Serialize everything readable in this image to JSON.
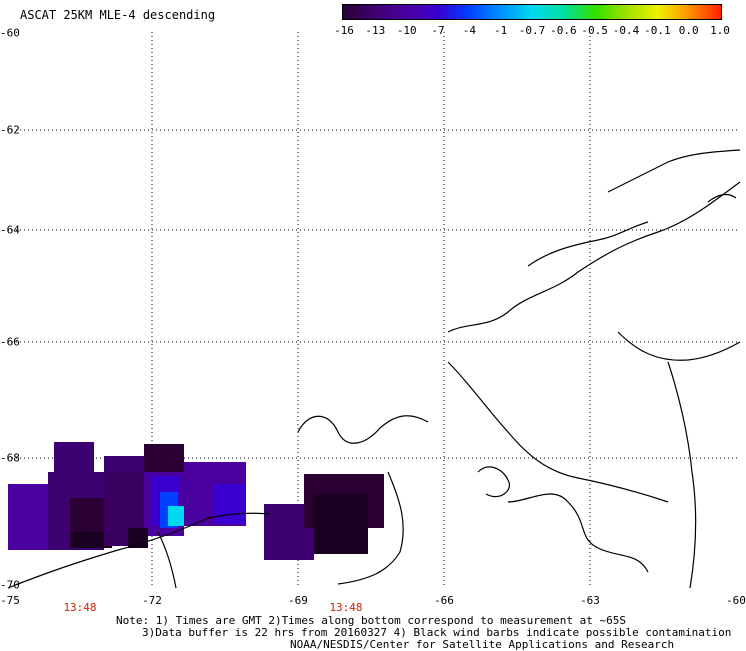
{
  "title": "ASCAT 25KM MLE-4 descending",
  "colorbar": {
    "labels": [
      "-16",
      "-13",
      "-10",
      "-7",
      "-4",
      "-1",
      "-0.7",
      "-0.6",
      "-0.5",
      "-0.4",
      "-0.1",
      "0.0",
      "1.0"
    ],
    "colors": [
      "#2a0033",
      "#3d0070",
      "#4b00a0",
      "#3a00d0",
      "#0040ff",
      "#0090ff",
      "#00d8f0",
      "#00e0a0",
      "#30e000",
      "#a0e000",
      "#f0f000",
      "#ff9000",
      "#ff2000"
    ]
  },
  "axes": {
    "x_ticks": [
      "-75",
      "-72",
      "-69",
      "-66",
      "-63",
      "-60"
    ],
    "y_ticks": [
      "-60",
      "-62",
      "-64",
      "-66",
      "-68",
      "-70"
    ]
  },
  "time_labels": [
    "13:48",
    "13:48"
  ],
  "notes": {
    "line1": "Note: 1) Times are GMT 2)Times along bottom correspond to measurement at ~65S",
    "line2": "3)Data buffer is 22 hrs from 20160327 4) Black wind barbs indicate possible contamination",
    "line3": "NOAA/NESDIS/Center for Satellite Applications and Research"
  }
}
